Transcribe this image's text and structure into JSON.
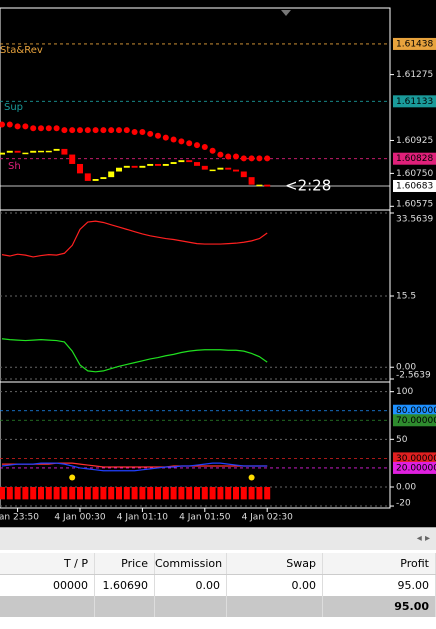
{
  "chart_data": [
    {
      "type": "candlestick",
      "open": [
        1.6085,
        1.6086,
        1.6087,
        1.6086,
        1.6086,
        1.6087,
        1.6087,
        1.6087,
        1.6088,
        1.6085,
        1.608,
        1.6075,
        1.6071,
        1.6072,
        1.6073,
        1.6076,
        1.6078,
        1.6079,
        1.6078,
        1.6079,
        1.608,
        1.6079,
        1.608,
        1.6081,
        1.6082,
        1.6081,
        1.6079,
        1.6077,
        1.6077,
        1.6078,
        1.6077,
        1.6076,
        1.6073,
        1.6069,
        1.6069
      ],
      "close": [
        1.6086,
        1.6087,
        1.6086,
        1.6086,
        1.6087,
        1.6087,
        1.6087,
        1.6088,
        1.6085,
        1.608,
        1.6075,
        1.6071,
        1.6072,
        1.6073,
        1.6076,
        1.6078,
        1.6079,
        1.6078,
        1.6079,
        1.608,
        1.6079,
        1.608,
        1.6081,
        1.6082,
        1.6081,
        1.6079,
        1.6077,
        1.6077,
        1.6078,
        1.6077,
        1.6076,
        1.6073,
        1.6069,
        1.6069,
        1.6068
      ],
      "up_color": "#ffff00",
      "down_color": "#ff0000",
      "series": [
        {
          "color": "#ff0000",
          "values": [
            1.6101,
            1.6101,
            1.61,
            1.61,
            1.6099,
            1.6099,
            1.6099,
            1.6099,
            1.6098,
            1.6098,
            1.6098,
            1.6098,
            1.6098,
            1.6098,
            1.6098,
            1.6098,
            1.6098,
            1.6097,
            1.6097,
            1.6096,
            1.6095,
            1.6094,
            1.6093,
            1.6092,
            1.6091,
            1.609,
            1.6089,
            1.6087,
            1.6085,
            1.6084,
            1.6084,
            1.6083,
            1.6083,
            1.6083,
            1.6083
          ]
        }
      ],
      "ylim": [
        1.60566,
        1.61629
      ],
      "yticks": [
        1.61275,
        1.60925,
        {
          "value": 1.6075,
          "label": "1.60750"
        },
        {
          "value": 1.60575,
          "label": "1.60575"
        }
      ],
      "levels": [
        {
          "value": 1.61438,
          "color": "#e8a33d"
        },
        {
          "value": 1.61133,
          "color": "#1a9a9a"
        },
        {
          "value": 1.60828,
          "color": "#e0207a"
        },
        {
          "value": 1.60683,
          "color": "#ffffff"
        }
      ],
      "annotations": [
        {
          "text": "Sta&Rev",
          "color": "#e8a33d"
        },
        {
          "text": "Sup",
          "color": "#1a9a9a"
        },
        {
          "text": "Sh",
          "color": "#e0207a"
        },
        {
          "text": "<2:28",
          "color": "#ffffff"
        }
      ]
    },
    {
      "type": "line",
      "series": [
        {
          "color": "#ff2020",
          "values": [
            24.5,
            24.2,
            24.6,
            24.4,
            24.0,
            24.3,
            24.5,
            24.4,
            24.8,
            26.5,
            30.0,
            31.6,
            31.8,
            31.5,
            31.0,
            30.5,
            30.0,
            29.5,
            29.0,
            28.6,
            28.3,
            28.0,
            27.8,
            27.5,
            27.2,
            26.9,
            26.8,
            26.8,
            26.8,
            26.9,
            27.0,
            27.2,
            27.5,
            28.0,
            29.2
          ]
        },
        {
          "color": "#20e020",
          "values": [
            6.2,
            6.0,
            5.9,
            5.8,
            5.9,
            6.0,
            5.9,
            5.8,
            5.5,
            3.5,
            0.5,
            -0.8,
            -1.0,
            -0.8,
            -0.3,
            0.2,
            0.6,
            1.0,
            1.4,
            1.8,
            2.1,
            2.5,
            2.8,
            3.2,
            3.5,
            3.7,
            3.8,
            3.8,
            3.8,
            3.7,
            3.7,
            3.5,
            3.0,
            2.3,
            1.1
          ]
        }
      ],
      "ylim": [
        -2.5639,
        33.5639
      ],
      "yticks": [
        33.5639,
        15.5,
        {
          "value": 0,
          "label": "0.00"
        },
        -2.5639
      ]
    },
    {
      "type": "line",
      "categories": [
        null,
        null,
        "Jan 23:50",
        null,
        null,
        null,
        null,
        null,
        null,
        null,
        "4 Jan 00:30",
        null,
        null,
        null,
        null,
        null,
        null,
        null,
        "4 Jan 01:10",
        null,
        null,
        null,
        null,
        null,
        null,
        null,
        "4 Jan 01:50",
        null,
        null,
        null,
        null,
        null,
        null,
        null,
        "4 Jan 02:30"
      ],
      "series": [
        {
          "color": "#ff3030",
          "values": [
            24,
            24,
            24,
            24,
            24,
            24,
            24,
            25,
            25,
            25,
            24,
            23,
            22,
            21,
            21,
            21,
            21,
            21,
            21,
            21,
            21,
            21,
            22,
            22,
            22,
            22,
            22,
            22,
            22,
            22,
            22,
            22,
            22,
            22,
            22
          ]
        },
        {
          "color": "#2040ff",
          "values": [
            22,
            23,
            24,
            24,
            24,
            25,
            25,
            25,
            24,
            22,
            20,
            19,
            18,
            17,
            17,
            17,
            17,
            17,
            18,
            19,
            20,
            21,
            21,
            22,
            22,
            23,
            24,
            25,
            25,
            24,
            23,
            22,
            22,
            22,
            22
          ]
        }
      ],
      "histogram": {
        "color": "#ff0000",
        "values": [
          -13,
          -13,
          -13,
          -13,
          -13,
          -13,
          -13,
          -13,
          -13,
          -13,
          -13,
          -13,
          -13,
          -13,
          -13,
          -13,
          -13,
          -13,
          -13,
          -13,
          -13,
          -13,
          -13,
          -13,
          -13,
          -13,
          -13,
          -13,
          -13,
          -13,
          -13,
          -13,
          -13,
          -13,
          -13
        ]
      },
      "dots": {
        "color": "#ffdd00",
        "values": [
          null,
          null,
          null,
          null,
          null,
          null,
          null,
          null,
          null,
          10,
          null,
          null,
          null,
          null,
          null,
          null,
          null,
          null,
          null,
          null,
          null,
          null,
          null,
          null,
          null,
          null,
          null,
          null,
          null,
          null,
          null,
          null,
          10,
          null,
          null
        ]
      },
      "ylim": [
        -21,
        107
      ],
      "yticks": [
        100,
        50,
        {
          "value": 0,
          "label": "0.00"
        },
        -20
      ],
      "levels": [
        {
          "value": 80,
          "label": "80.00000",
          "color": "#1e90ff"
        },
        {
          "value": 70,
          "label": "70.00000",
          "color": "#2e8b2e"
        },
        {
          "value": 30,
          "label": "30.00000",
          "color": "#e02020"
        },
        {
          "value": 20,
          "label": "20.00000",
          "color": "#e020e0"
        }
      ]
    }
  ],
  "table": {
    "headers": [
      "T / P",
      "Price",
      "Commission",
      "Swap",
      "Profit"
    ],
    "rows": [
      [
        "00000",
        "1.60690",
        "0.00",
        "0.00",
        "95.00"
      ]
    ],
    "total": "95.00"
  }
}
